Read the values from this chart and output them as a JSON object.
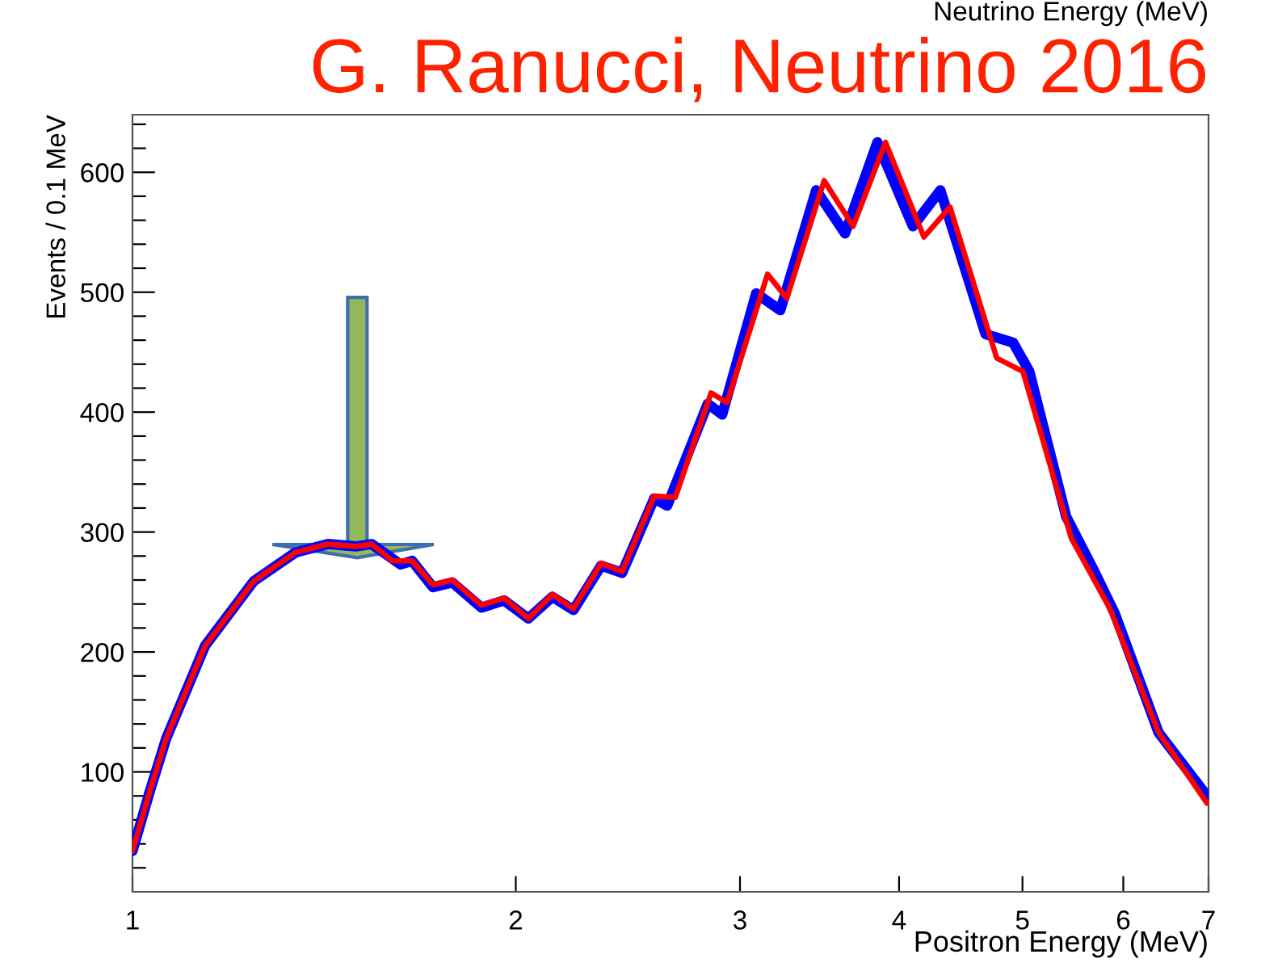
{
  "chart_data": {
    "type": "line",
    "title": "G. Ranucci, Neutrino 2016",
    "xlabel": "Positron Energy (MeV)",
    "ylabel": "Events / 0.1 MeV",
    "annotations": [
      "Neutrino Energy (MeV)"
    ],
    "log": "x",
    "xlim": [
      1,
      7
    ],
    "xticks": [
      1,
      2,
      3,
      4,
      5,
      6,
      7
    ],
    "ylim": [
      0,
      648
    ],
    "yticks": [
      {
        "value": 20,
        "label": null
      },
      {
        "value": 40,
        "label": null
      },
      {
        "value": 60,
        "label": null
      },
      {
        "value": 80,
        "label": null
      },
      100,
      {
        "value": 120,
        "label": null
      },
      {
        "value": 140,
        "label": null
      },
      {
        "value": 160,
        "label": null
      },
      {
        "value": 180,
        "label": null
      },
      200,
      {
        "value": 220,
        "label": null
      },
      {
        "value": 240,
        "label": null
      },
      {
        "value": 260,
        "label": null
      },
      {
        "value": 280,
        "label": null
      },
      300,
      {
        "value": 320,
        "label": null
      },
      {
        "value": 340,
        "label": null
      },
      {
        "value": 360,
        "label": null
      },
      {
        "value": 380,
        "label": null
      },
      400,
      {
        "value": 420,
        "label": null
      },
      {
        "value": 440,
        "label": null
      },
      {
        "value": 460,
        "label": null
      },
      {
        "value": 480,
        "label": null
      },
      500,
      {
        "value": 520,
        "label": null
      },
      {
        "value": 540,
        "label": null
      },
      {
        "value": 560,
        "label": null
      },
      {
        "value": 580,
        "label": null
      },
      600,
      {
        "value": 620,
        "label": null
      },
      {
        "value": 640,
        "label": null
      }
    ],
    "grid": false,
    "marker": "none",
    "line_style": "solid",
    "series": [
      {
        "color": "#0000ff",
        "x": [
          1.0,
          1.032,
          1.063,
          1.14,
          1.245,
          1.343,
          1.424,
          1.497,
          1.541,
          1.624,
          1.658,
          1.722,
          1.783,
          1.88,
          1.958,
          2.046,
          2.137,
          2.22,
          2.334,
          2.424,
          2.569,
          2.63,
          2.83,
          2.905,
          3.089,
          3.227,
          3.443,
          3.628,
          3.846,
          4.101,
          4.31,
          4.677,
          4.916,
          5.062,
          5.411,
          5.689,
          5.909,
          6.394,
          6.98
        ],
        "values": [
          34,
          84,
          128,
          205,
          259,
          283,
          290,
          288,
          290,
          273,
          276,
          254,
          258,
          237,
          243,
          228,
          246,
          235,
          272,
          266,
          328,
          322,
          407,
          398,
          499,
          485,
          585,
          549,
          625,
          555,
          585,
          465,
          458,
          434,
          313,
          268,
          232,
          133,
          80
        ]
      },
      {
        "color": "#ff0000",
        "x": [
          1.0,
          1.032,
          1.063,
          1.14,
          1.245,
          1.343,
          1.424,
          1.497,
          1.541,
          1.6,
          1.658,
          1.722,
          1.783,
          1.88,
          1.958,
          2.046,
          2.137,
          2.22,
          2.334,
          2.424,
          2.569,
          2.669,
          2.847,
          2.931,
          3.153,
          3.265,
          3.493,
          3.681,
          3.903,
          4.184,
          4.386,
          4.773,
          5.004,
          5.461,
          5.858,
          6.394,
          6.98
        ],
        "values": [
          34,
          84,
          128,
          205,
          259,
          283,
          290,
          288,
          290,
          276,
          276,
          256,
          260,
          239,
          245,
          228,
          248,
          236,
          274,
          267,
          330,
          329,
          416,
          408,
          515,
          495,
          593,
          555,
          625,
          546,
          571,
          445,
          434,
          295,
          236,
          133,
          74
        ]
      }
    ]
  }
}
